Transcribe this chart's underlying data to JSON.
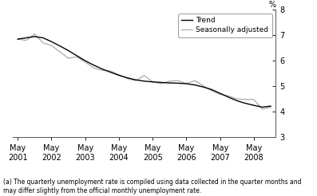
{
  "ylabel": "%",
  "ylim": [
    3,
    8
  ],
  "yticks": [
    3,
    4,
    5,
    6,
    7,
    8
  ],
  "footnote": "(a) The quarterly unemployment rate is compiled using data collected in the quarter months and\nmay differ slightly from the official monthly unemployment rate.",
  "legend_labels": [
    "Trend",
    "Seasonally adjusted"
  ],
  "trend_color": "#000000",
  "seasonal_color": "#aaaaaa",
  "background_color": "#ffffff",
  "x_tick_labels": [
    "May\n2001",
    "May\n2002",
    "May\n2003",
    "May\n2004",
    "May\n2005",
    "May\n2006",
    "May\n2007",
    "May\n2008"
  ],
  "trend_x": [
    0.0,
    0.25,
    0.5,
    0.75,
    1.0,
    1.25,
    1.5,
    1.75,
    2.0,
    2.25,
    2.5,
    2.75,
    3.0,
    3.25,
    3.5,
    3.75,
    4.0,
    4.25,
    4.5,
    4.75,
    5.0,
    5.25,
    5.5,
    5.75,
    6.0,
    6.25,
    6.5,
    6.75,
    7.0,
    7.25,
    7.5
  ],
  "trend_y": [
    6.85,
    6.9,
    6.95,
    6.9,
    6.75,
    6.58,
    6.4,
    6.2,
    6.0,
    5.83,
    5.68,
    5.55,
    5.43,
    5.33,
    5.25,
    5.2,
    5.17,
    5.15,
    5.13,
    5.12,
    5.1,
    5.05,
    4.97,
    4.87,
    4.72,
    4.57,
    4.43,
    4.33,
    4.25,
    4.18,
    4.22
  ],
  "sa_x": [
    0.0,
    0.25,
    0.5,
    0.75,
    1.0,
    1.25,
    1.5,
    1.75,
    2.0,
    2.25,
    2.5,
    2.75,
    3.0,
    3.25,
    3.5,
    3.75,
    4.0,
    4.25,
    4.5,
    4.75,
    5.0,
    5.25,
    5.5,
    5.75,
    6.0,
    6.25,
    6.5,
    6.75,
    7.0,
    7.25,
    7.5
  ],
  "sa_y": [
    6.85,
    6.8,
    7.05,
    6.7,
    6.6,
    6.35,
    6.1,
    6.15,
    5.95,
    5.72,
    5.62,
    5.6,
    5.45,
    5.3,
    5.22,
    5.42,
    5.18,
    5.1,
    5.2,
    5.22,
    5.1,
    5.22,
    5.02,
    4.82,
    4.68,
    4.62,
    4.5,
    4.48,
    4.48,
    4.1,
    4.18
  ],
  "xlim_left": -0.15,
  "xlim_right": 7.65
}
